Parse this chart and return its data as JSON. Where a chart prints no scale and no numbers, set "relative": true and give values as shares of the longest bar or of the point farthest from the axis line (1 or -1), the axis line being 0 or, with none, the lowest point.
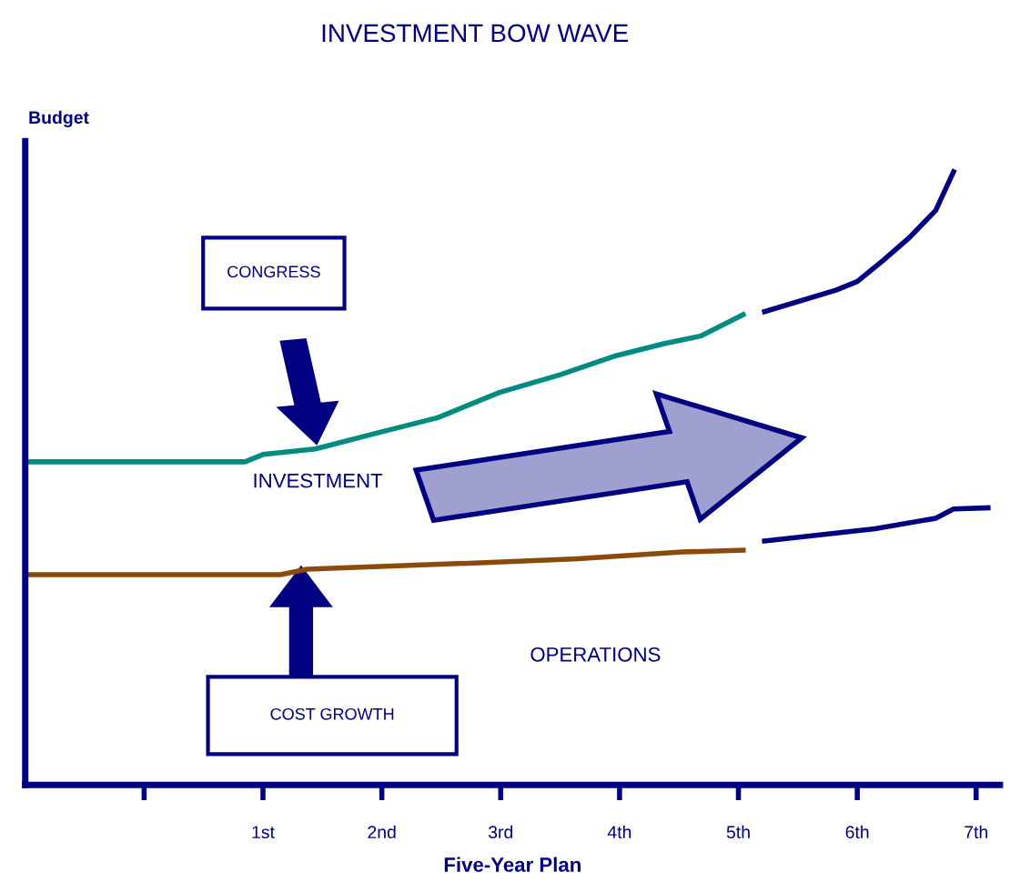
{
  "chart_data": {
    "type": "line",
    "title": "INVESTMENT BOW WAVE",
    "xlabel": "Five-Year Plan",
    "ylabel": "Budget",
    "relative": true,
    "xlim": [
      -1,
      7.2
    ],
    "xticks": [
      {
        "value": 0,
        "label": null
      },
      {
        "value": 1,
        "label": "1st"
      },
      {
        "value": 2,
        "label": "2nd"
      },
      {
        "value": 3,
        "label": "3rd"
      },
      {
        "value": 4,
        "label": "4th"
      },
      {
        "value": 5,
        "label": "5th"
      },
      {
        "value": 6,
        "label": "6th"
      },
      {
        "value": 7,
        "label": "7th"
      }
    ],
    "series": [
      {
        "color": "#008b80",
        "x": [
          -1,
          0.85,
          1.0,
          1.44,
          2.0,
          2.47,
          2.99,
          3.5,
          3.97,
          4.38,
          4.68,
          5.04
        ],
        "values": [
          0.527,
          0.527,
          0.539,
          0.548,
          0.576,
          0.599,
          0.64,
          0.669,
          0.7,
          0.72,
          0.732,
          0.767
        ]
      },
      {
        "color": "#000080",
        "x": [
          5.22,
          5.82,
          6.0,
          6.22,
          6.44,
          6.66,
          6.81
        ],
        "values": [
          0.772,
          0.807,
          0.821,
          0.856,
          0.893,
          0.937,
          1.0
        ]
      },
      {
        "color": "#8b4a0a",
        "x": [
          -1,
          1.15,
          1.37,
          2.92,
          3.65,
          4.53,
          5.04
        ],
        "values": [
          0.343,
          0.343,
          0.352,
          0.363,
          0.369,
          0.38,
          0.383
        ]
      },
      {
        "color": "#000080",
        "x": [
          5.22,
          6.15,
          6.66,
          6.81,
          7.1
        ],
        "values": [
          0.398,
          0.418,
          0.435,
          0.45,
          0.452
        ]
      }
    ],
    "annotations": [
      "CONGRESS",
      "COST GROWTH",
      "INVESTMENT",
      "OPERATIONS"
    ],
    "grid": false,
    "legend": false,
    "marker": "none",
    "line_style": "solid"
  }
}
